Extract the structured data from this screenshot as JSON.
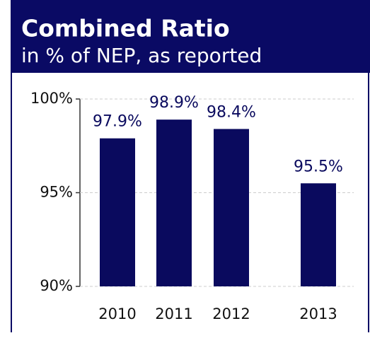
{
  "chart_data": {
    "type": "bar",
    "title": "Combined Ratio",
    "subtitle": "in % of NEP, as reported",
    "categories": [
      "2010",
      "2011",
      "2012",
      "2013"
    ],
    "values": [
      97.9,
      98.9,
      98.4,
      95.5
    ],
    "value_labels": [
      "97.9%",
      "98.9%",
      "98.4%",
      "95.5%"
    ],
    "color": "#0a0a5e",
    "ylim": [
      90,
      100
    ],
    "yticks": [
      {
        "value": 90,
        "label": "90%"
      },
      {
        "value": 95,
        "label": "95%"
      },
      {
        "value": 100,
        "label": "100%"
      }
    ],
    "grid": true
  }
}
